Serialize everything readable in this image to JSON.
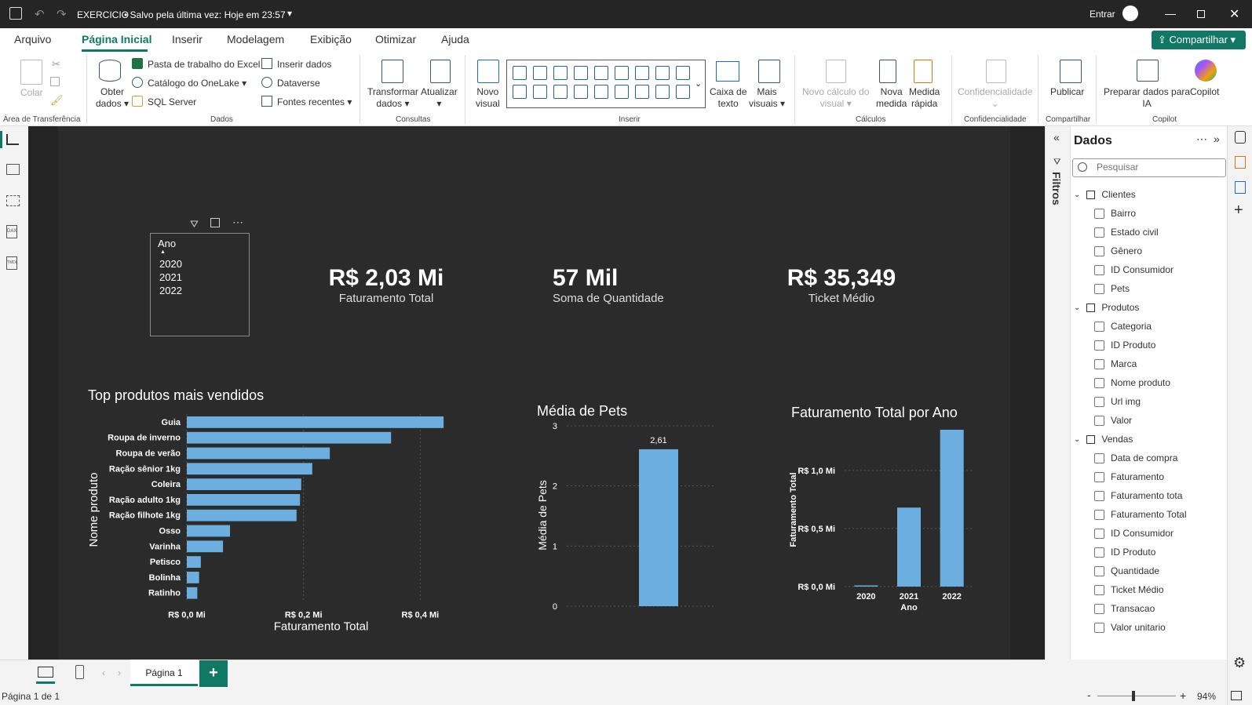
{
  "titlebar": {
    "file": "EXERCICIO",
    "saved": "• Salvo pela última vez: Hoje em 23:57",
    "signin": "Entrar"
  },
  "menu": [
    "Arquivo",
    "Página Inicial",
    "Inserir",
    "Modelagem",
    "Exibição",
    "Otimizar",
    "Ajuda"
  ],
  "share": "Compartilhar",
  "ribbon": {
    "clipboard": {
      "colar": "Colar",
      "group": "Área de Transferência"
    },
    "dados": {
      "obter1": "Obter",
      "obter2": "dados",
      "excel": "Pasta de trabalho do Excel",
      "onelake": "Catálogo do OneLake",
      "sql": "SQL Server",
      "inserir": "Inserir dados",
      "dataverse": "Dataverse",
      "fontes": "Fontes recentes",
      "group": "Dados"
    },
    "consultas": {
      "transformar1": "Transformar",
      "transformar2": "dados",
      "atualizar": "Atualizar",
      "group": "Consultas"
    },
    "inserir": {
      "novo1": "Novo",
      "novo2": "visual",
      "caixa1": "Caixa de",
      "caixa2": "texto",
      "mais1": "Mais",
      "mais2": "visuais",
      "group": "Inserir"
    },
    "calculos": {
      "novocalc1": "Novo cálculo do",
      "novocalc2": "visual",
      "nova1": "Nova",
      "nova2": "medida",
      "medida1": "Medida",
      "medida2": "rápida",
      "group": "Cálculos"
    },
    "conf": {
      "label": "Confidencialidade",
      "group": "Confidencialidade"
    },
    "compartilhar": {
      "publicar": "Publicar",
      "group": "Compartilhar"
    },
    "copilot": {
      "preparar1": "Preparar dados para",
      "preparar2": "IA",
      "copilot": "Copilot",
      "group": "Copilot"
    }
  },
  "slicer": {
    "title": "Ano",
    "items": [
      "2020",
      "2021",
      "2022"
    ]
  },
  "kpis": [
    {
      "value": "R$ 2,03 Mi",
      "label": "Faturamento Total"
    },
    {
      "value": "57 Mil",
      "label": "Soma de Quantidade"
    },
    {
      "value": "R$ 35,349",
      "label": "Ticket Médio"
    }
  ],
  "chart_data": [
    {
      "type": "bar",
      "orientation": "horizontal",
      "title": "Top produtos mais vendidos",
      "xlabel": "Faturamento Total",
      "ylabel": "Nome produto",
      "categories": [
        "Guia",
        "Roupa de inverno",
        "Roupa de verão",
        "Ração sênior 1kg",
        "Coleira",
        "Ração adulto 1kg",
        "Ração filhote 1kg",
        "Osso",
        "Varinha",
        "Petisco",
        "Bolinha",
        "Ratinho"
      ],
      "values": [
        0.44,
        0.35,
        0.245,
        0.215,
        0.196,
        0.194,
        0.188,
        0.074,
        0.062,
        0.024,
        0.021,
        0.018
      ],
      "xticks": [
        "R$ 0,0 Mi",
        "R$ 0,2 Mi",
        "R$ 0,4 Mi"
      ],
      "xlim": [
        0,
        0.46
      ],
      "color": "#6caee0"
    },
    {
      "type": "bar",
      "title": "Média de Pets",
      "ylabel": "Média de Pets",
      "categories": [
        ""
      ],
      "values": [
        2.61
      ],
      "data_labels": [
        "2,61"
      ],
      "yticks": [
        "0",
        "1",
        "2",
        "3"
      ],
      "ylim": [
        0,
        3
      ],
      "color": "#6caee0"
    },
    {
      "type": "bar",
      "title": "Faturamento Total por Ano",
      "xlabel": "Ano",
      "ylabel": "Faturamento Total",
      "categories": [
        "2020",
        "2021",
        "2022"
      ],
      "values": [
        0.01,
        0.68,
        1.35
      ],
      "yticks": [
        "R$ 0,0 Mi",
        "R$ 0,5 Mi",
        "R$ 1,0 Mi"
      ],
      "ylim": [
        0,
        1.35
      ],
      "color": "#6caee0"
    }
  ],
  "pane": {
    "title": "Dados",
    "search": "Pesquisar",
    "filtros": "Filtros",
    "tables": [
      {
        "name": "Clientes",
        "fields": [
          "Bairro",
          "Estado civil",
          "Gênero",
          "ID Consumidor",
          "Pets"
        ]
      },
      {
        "name": "Produtos",
        "fields": [
          "Categoria",
          "ID Produto",
          "Marca",
          "Nome produto",
          "Url img",
          "Valor"
        ]
      },
      {
        "name": "Vendas",
        "fields": [
          "Data de compra",
          "Faturamento",
          "Faturamento tota",
          "Faturamento Total",
          "ID Consumidor",
          "ID Produto",
          "Quantidade",
          "Ticket Médio",
          "Transacao",
          "Valor unitario"
        ]
      }
    ]
  },
  "bottom": {
    "page": "Página 1",
    "add": "+"
  },
  "status": {
    "pages": "Página 1 de 1",
    "zoom": "94%"
  }
}
